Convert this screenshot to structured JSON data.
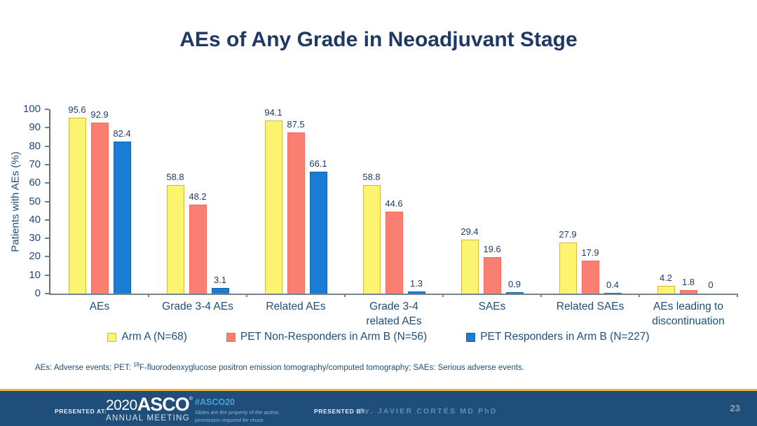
{
  "slide": {
    "title": "AEs of Any Grade in Neoadjuvant Stage"
  },
  "chart_data": {
    "type": "bar",
    "title": "AEs of Any Grade in Neoadjuvant Stage",
    "xlabel": "",
    "ylabel": "Patients with AEs (%)",
    "ylim": [
      0,
      100
    ],
    "ytick_step": 10,
    "grid": false,
    "legend_position": "bottom",
    "categories": [
      "AEs",
      "Grade 3-4 AEs",
      "Related AEs",
      "Grade 3-4\nrelated AEs",
      "SAEs",
      "Related SAEs",
      "AEs leading to\ndiscontinuation"
    ],
    "series": [
      {
        "name": "Arm A (N=68)",
        "values": [
          95.6,
          58.8,
          94.1,
          58.8,
          29.4,
          27.9,
          4.2
        ],
        "fill": "#FCF36E",
        "border": "#D6B848"
      },
      {
        "name": "PET Non-Responders in Arm B (N=56)",
        "values": [
          92.9,
          48.2,
          87.5,
          44.6,
          19.6,
          17.9,
          1.8
        ],
        "fill": "#F97F72",
        "border": "#F06A5E"
      },
      {
        "name": "PET Responders in Arm B  (N=227)",
        "values": [
          82.4,
          3.1,
          66.1,
          1.3,
          0.9,
          0.4,
          0
        ],
        "fill": "#1B7CD6",
        "border": "#1166A4"
      }
    ]
  },
  "footnote": {
    "pre": "AEs: Adverse events; PET: ",
    "sup": "18",
    "post": "F-fluorodeoxyglucose positron emission tomography/computed tomography; SAEs: Serious adverse events."
  },
  "footer": {
    "presented_at_label": "PRESENTED AT:",
    "logo_year": "2020",
    "logo_name": "ASCO",
    "logo_reg": "®",
    "logo_subtitle": "ANNUAL MEETING",
    "hashtag": "#ASCO20",
    "disclaimer_line1": "Slides are the property of the author,",
    "disclaimer_line2": "permission required for reuse.",
    "presented_by_label": "PRESENTED BY:",
    "presenter": "Dr. JAVIER CORTÉS MD PhD",
    "page_number": "23",
    "colors": {
      "bar_background": "#1E4E79",
      "gold_line": "#E9B839",
      "hashtag_blue": "#4EA0D6"
    }
  }
}
